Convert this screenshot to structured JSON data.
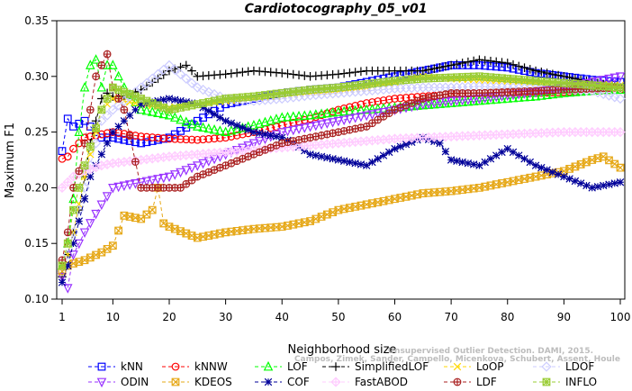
{
  "chart_data": {
    "type": "line",
    "title": "Cardiotocography_05_v01",
    "xlabel": "Neighborhood size",
    "ylabel": "Maximum F1",
    "xlim": [
      1,
      100
    ],
    "ylim": [
      0.1,
      0.35
    ],
    "xticks": [
      1,
      10,
      20,
      30,
      40,
      50,
      60,
      70,
      80,
      90,
      100
    ],
    "yticks": [
      0.1,
      0.15,
      0.2,
      0.25,
      0.3,
      0.35
    ],
    "ytick_labels": [
      "0.10",
      "0.15",
      "0.20",
      "0.25",
      "0.30",
      "0.35"
    ],
    "grid": false,
    "legend_position": "bottom",
    "watermark": [
      "Unsupervised Outlier Detection. DAMI, 2015.",
      "Campos, Zimek, Sander, Campello, Micenkova, Schubert, Assent, Houle"
    ],
    "series": [
      {
        "name": "kNN",
        "color": "#0000ff",
        "marker": "square",
        "x": [
          1,
          2,
          3,
          5,
          8,
          10,
          15,
          20,
          25,
          30,
          35,
          40,
          45,
          50,
          55,
          60,
          65,
          70,
          75,
          80,
          85,
          90,
          95,
          100
        ],
        "y": [
          0.233,
          0.262,
          0.255,
          0.26,
          0.245,
          0.245,
          0.24,
          0.245,
          0.26,
          0.275,
          0.28,
          0.285,
          0.288,
          0.29,
          0.295,
          0.3,
          0.305,
          0.31,
          0.31,
          0.308,
          0.303,
          0.3,
          0.297,
          0.295
        ]
      },
      {
        "name": "kNNW",
        "color": "#ff0000",
        "marker": "circle",
        "x": [
          1,
          2,
          3,
          5,
          8,
          10,
          15,
          20,
          25,
          30,
          35,
          40,
          45,
          50,
          55,
          60,
          65,
          70,
          75,
          80,
          85,
          90,
          95,
          100
        ],
        "y": [
          0.226,
          0.228,
          0.235,
          0.245,
          0.248,
          0.25,
          0.246,
          0.244,
          0.243,
          0.245,
          0.25,
          0.256,
          0.262,
          0.27,
          0.276,
          0.28,
          0.282,
          0.284,
          0.285,
          0.285,
          0.285,
          0.286,
          0.287,
          0.288
        ]
      },
      {
        "name": "LOF",
        "color": "#00ff00",
        "marker": "triangle-up",
        "x": [
          1,
          2,
          3,
          4,
          5,
          6,
          7,
          8,
          9,
          10,
          12,
          15,
          20,
          25,
          30,
          35,
          40,
          45,
          50,
          55,
          60,
          65,
          70,
          75,
          80,
          85,
          90,
          95,
          100
        ],
        "y": [
          0.13,
          0.15,
          0.19,
          0.25,
          0.29,
          0.31,
          0.315,
          0.29,
          0.31,
          0.31,
          0.29,
          0.27,
          0.265,
          0.255,
          0.25,
          0.256,
          0.263,
          0.265,
          0.268,
          0.27,
          0.272,
          0.274,
          0.276,
          0.278,
          0.28,
          0.282,
          0.285,
          0.287,
          0.288
        ]
      },
      {
        "name": "SimplifiedLOF",
        "color": "#000000",
        "marker": "plus",
        "x": [
          1,
          2,
          3,
          4,
          5,
          6,
          7,
          8,
          9,
          10,
          12,
          15,
          18,
          20,
          23,
          25,
          30,
          35,
          40,
          45,
          50,
          55,
          60,
          65,
          70,
          75,
          80,
          85,
          90,
          95,
          100
        ],
        "y": [
          0.12,
          0.14,
          0.16,
          0.18,
          0.21,
          0.24,
          0.26,
          0.28,
          0.285,
          0.282,
          0.282,
          0.288,
          0.298,
          0.305,
          0.31,
          0.3,
          0.302,
          0.305,
          0.303,
          0.3,
          0.302,
          0.305,
          0.305,
          0.305,
          0.31,
          0.315,
          0.312,
          0.305,
          0.3,
          0.295,
          0.29
        ]
      },
      {
        "name": "LoOP",
        "color": "#ffd700",
        "marker": "x",
        "x": [
          1,
          2,
          3,
          5,
          8,
          10,
          15,
          20,
          25,
          30,
          35,
          40,
          45,
          50,
          55,
          60,
          65,
          70,
          75,
          80,
          85,
          90,
          95,
          100
        ],
        "y": [
          0.13,
          0.14,
          0.16,
          0.21,
          0.27,
          0.28,
          0.275,
          0.272,
          0.275,
          0.278,
          0.28,
          0.283,
          0.285,
          0.287,
          0.29,
          0.295,
          0.3,
          0.298,
          0.297,
          0.296,
          0.295,
          0.294,
          0.293,
          0.292
        ]
      },
      {
        "name": "LDOF",
        "color": "#ccccff",
        "marker": "diamond",
        "x": [
          1,
          2,
          3,
          5,
          8,
          10,
          15,
          20,
          25,
          30,
          35,
          40,
          45,
          50,
          55,
          60,
          65,
          70,
          75,
          80,
          85,
          90,
          95,
          100
        ],
        "y": [
          0.125,
          0.14,
          0.16,
          0.2,
          0.26,
          0.27,
          0.29,
          0.31,
          0.29,
          0.28,
          0.278,
          0.28,
          0.283,
          0.285,
          0.287,
          0.289,
          0.29,
          0.29,
          0.291,
          0.29,
          0.289,
          0.288,
          0.287,
          0.28
        ]
      },
      {
        "name": "ODIN",
        "color": "#9933ff",
        "marker": "triangle-down",
        "x": [
          1,
          2,
          3,
          5,
          8,
          10,
          15,
          20,
          25,
          30,
          35,
          40,
          45,
          50,
          55,
          60,
          65,
          70,
          75,
          80,
          85,
          90,
          95,
          100
        ],
        "y": [
          0.12,
          0.11,
          0.14,
          0.16,
          0.185,
          0.2,
          0.205,
          0.21,
          0.22,
          0.23,
          0.24,
          0.25,
          0.255,
          0.26,
          0.265,
          0.27,
          0.275,
          0.278,
          0.28,
          0.283,
          0.286,
          0.29,
          0.295,
          0.3
        ]
      },
      {
        "name": "KDEOS",
        "color": "#e6a817",
        "marker": "square-x",
        "x": [
          1,
          2,
          3,
          5,
          8,
          10,
          12,
          15,
          17,
          18,
          19,
          20,
          25,
          30,
          35,
          40,
          45,
          50,
          55,
          60,
          65,
          70,
          75,
          80,
          85,
          90,
          95,
          97,
          100
        ],
        "y": [
          0.125,
          0.13,
          0.132,
          0.135,
          0.142,
          0.148,
          0.175,
          0.172,
          0.18,
          0.2,
          0.168,
          0.165,
          0.155,
          0.16,
          0.163,
          0.165,
          0.17,
          0.18,
          0.185,
          0.19,
          0.195,
          0.197,
          0.2,
          0.205,
          0.21,
          0.215,
          0.225,
          0.228,
          0.218
        ]
      },
      {
        "name": "COF",
        "color": "#000099",
        "marker": "asterisk",
        "x": [
          1,
          2,
          3,
          4,
          5,
          6,
          8,
          10,
          12,
          15,
          20,
          25,
          30,
          35,
          40,
          42,
          45,
          50,
          55,
          60,
          65,
          68,
          70,
          75,
          80,
          85,
          90,
          95,
          100
        ],
        "y": [
          0.115,
          0.13,
          0.15,
          0.17,
          0.19,
          0.21,
          0.23,
          0.25,
          0.26,
          0.275,
          0.28,
          0.275,
          0.26,
          0.25,
          0.245,
          0.24,
          0.23,
          0.225,
          0.22,
          0.235,
          0.245,
          0.24,
          0.225,
          0.22,
          0.235,
          0.22,
          0.21,
          0.2,
          0.205
        ]
      },
      {
        "name": "FastABOD",
        "color": "#ffccff",
        "marker": "diamond-cross",
        "x": [
          1,
          2,
          3,
          5,
          8,
          10,
          15,
          20,
          25,
          30,
          35,
          40,
          45,
          50,
          55,
          60,
          65,
          70,
          75,
          80,
          85,
          90,
          95,
          100
        ],
        "y": [
          0.2,
          0.205,
          0.21,
          0.215,
          0.22,
          0.222,
          0.225,
          0.228,
          0.23,
          0.232,
          0.234,
          0.236,
          0.238,
          0.24,
          0.242,
          0.244,
          0.245,
          0.246,
          0.247,
          0.248,
          0.249,
          0.25,
          0.25,
          0.25
        ]
      },
      {
        "name": "LDF",
        "color": "#aa2222",
        "marker": "circle-plus",
        "x": [
          1,
          2,
          3,
          4,
          5,
          6,
          7,
          8,
          9,
          10,
          12,
          15,
          20,
          22,
          25,
          30,
          35,
          40,
          45,
          50,
          55,
          60,
          65,
          70,
          75,
          80,
          85,
          90,
          95,
          100
        ],
        "y": [
          0.135,
          0.16,
          0.2,
          0.215,
          0.24,
          0.27,
          0.3,
          0.31,
          0.32,
          0.29,
          0.27,
          0.2,
          0.2,
          0.2,
          0.21,
          0.22,
          0.23,
          0.24,
          0.245,
          0.25,
          0.255,
          0.27,
          0.28,
          0.285,
          0.285,
          0.286,
          0.287,
          0.288,
          0.289,
          0.29
        ]
      },
      {
        "name": "INFLO",
        "color": "#99cc33",
        "marker": "square-star",
        "x": [
          1,
          2,
          3,
          5,
          8,
          10,
          15,
          20,
          25,
          30,
          35,
          40,
          45,
          50,
          55,
          60,
          65,
          70,
          75,
          80,
          85,
          90,
          95,
          100
        ],
        "y": [
          0.13,
          0.15,
          0.18,
          0.22,
          0.27,
          0.29,
          0.28,
          0.27,
          0.275,
          0.28,
          0.282,
          0.285,
          0.288,
          0.29,
          0.293,
          0.296,
          0.298,
          0.299,
          0.3,
          0.298,
          0.296,
          0.294,
          0.292,
          0.29
        ]
      }
    ]
  }
}
